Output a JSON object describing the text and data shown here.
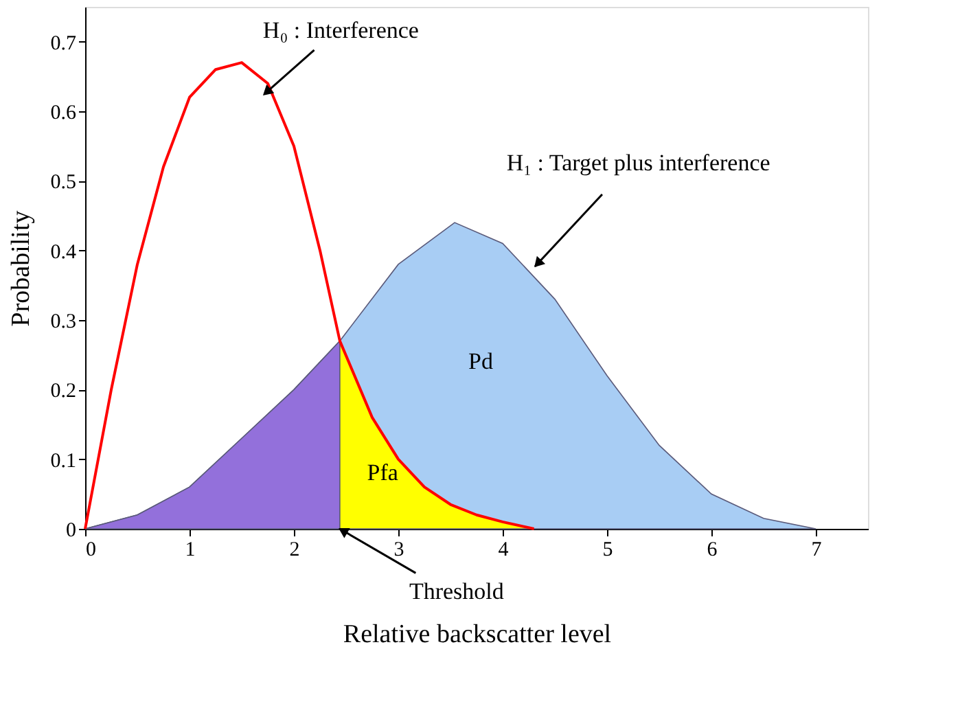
{
  "chart_data": {
    "type": "area",
    "xlabel": "Relative backscatter level",
    "ylabel": "Probability",
    "xlim": [
      0,
      7.5
    ],
    "xticks": [
      0,
      1,
      2,
      3,
      4,
      5,
      6,
      7
    ],
    "ylim": [
      0,
      0.75
    ],
    "yticks": [
      0,
      0.1,
      0.2,
      0.3,
      0.4,
      0.5,
      0.6,
      0.7
    ],
    "grid": false,
    "series": [
      {
        "type": "area",
        "color": "#a8cdf4",
        "x": [
          0,
          0.5,
          1,
          1.5,
          2,
          2.44,
          3,
          3.54,
          4,
          4.5,
          5,
          5.5,
          6,
          6.5,
          7
        ],
        "values": [
          0,
          0.02,
          0.06,
          0.13,
          0.2,
          0.27,
          0.38,
          0.44,
          0.41,
          0.33,
          0.22,
          0.12,
          0.05,
          0.015,
          0
        ]
      },
      {
        "type": "area",
        "color": "#9370db",
        "x": [
          0,
          0.5,
          1,
          1.5,
          2,
          2.44
        ],
        "values": [
          0,
          0.02,
          0.06,
          0.13,
          0.2,
          0.27
        ]
      },
      {
        "type": "area",
        "color": "#ffff00",
        "x": [
          2.44,
          2.75,
          3,
          3.25,
          3.5,
          3.75,
          4,
          4.3
        ],
        "values": [
          0.27,
          0.16,
          0.1,
          0.06,
          0.035,
          0.02,
          0.01,
          0
        ]
      },
      {
        "type": "line",
        "color": "#ff0000",
        "x": [
          0,
          0.25,
          0.5,
          0.75,
          1,
          1.25,
          1.5,
          1.75,
          2,
          2.25,
          2.44,
          2.75,
          3,
          3.25,
          3.5,
          3.75,
          4,
          4.3
        ],
        "values": [
          0,
          0.2,
          0.38,
          0.52,
          0.62,
          0.66,
          0.67,
          0.64,
          0.55,
          0.4,
          0.27,
          0.16,
          0.1,
          0.06,
          0.035,
          0.02,
          0.01,
          0
        ]
      }
    ],
    "annotations": [
      "H₀ : Interference",
      "H₁ : Target plus interference",
      "Pd",
      "Pfa",
      {
        "text": "Threshold",
        "x": 2.44,
        "y": 0
      }
    ]
  }
}
